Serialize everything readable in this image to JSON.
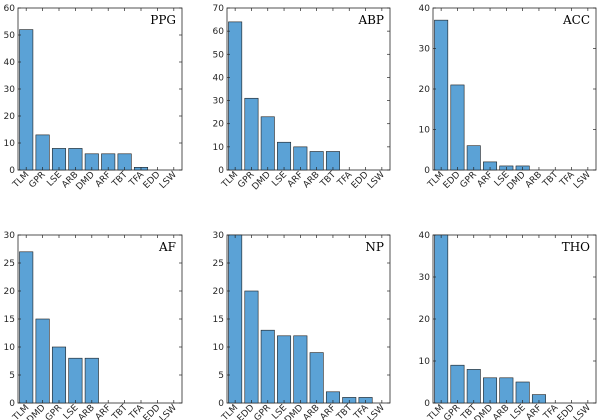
{
  "colors": {
    "bar": "#5ba2d6",
    "bar_edge": "#1f1f1f",
    "axis": "#262626"
  },
  "chart_data": [
    {
      "type": "bar",
      "title": "PPG",
      "categories": [
        "TLM",
        "GPR",
        "LSE",
        "ARB",
        "DMD",
        "ARF",
        "TBT",
        "TFA",
        "EDD",
        "LSW"
      ],
      "values": [
        52,
        13,
        8,
        8,
        6,
        6,
        6,
        1,
        0,
        0
      ],
      "ylim": [
        0,
        60
      ],
      "yticks": [
        0,
        10,
        20,
        30,
        40,
        50,
        60
      ],
      "grid": false,
      "legend": "none"
    },
    {
      "type": "bar",
      "title": "ABP",
      "categories": [
        "TLM",
        "GPR",
        "DMD",
        "LSE",
        "ARF",
        "ARB",
        "TBT",
        "TFA",
        "EDD",
        "LSW"
      ],
      "values": [
        64,
        31,
        23,
        12,
        10,
        8,
        8,
        0,
        0,
        0
      ],
      "ylim": [
        0,
        70
      ],
      "yticks": [
        0,
        10,
        20,
        30,
        40,
        50,
        60,
        70
      ],
      "grid": false,
      "legend": "none"
    },
    {
      "type": "bar",
      "title": "ACC",
      "categories": [
        "TLM",
        "EDD",
        "GPR",
        "ARF",
        "LSE",
        "DMD",
        "ARB",
        "TBT",
        "TFA",
        "LSW"
      ],
      "values": [
        37,
        21,
        6,
        2,
        1,
        1,
        0,
        0,
        0,
        0
      ],
      "ylim": [
        0,
        40
      ],
      "yticks": [
        0,
        10,
        20,
        30,
        40
      ],
      "grid": false,
      "legend": "none"
    },
    {
      "type": "bar",
      "title": "AF",
      "categories": [
        "TLM",
        "DMD",
        "GPR",
        "LSE",
        "ARB",
        "ARF",
        "TBT",
        "TFA",
        "EDD",
        "LSW"
      ],
      "values": [
        27,
        15,
        10,
        8,
        8,
        0,
        0,
        0,
        0,
        0
      ],
      "ylim": [
        0,
        30
      ],
      "yticks": [
        0,
        5,
        10,
        15,
        20,
        25,
        30
      ],
      "grid": false,
      "legend": "none"
    },
    {
      "type": "bar",
      "title": "NP",
      "categories": [
        "TLM",
        "EDD",
        "GPR",
        "LSE",
        "DMD",
        "ARB",
        "ARF",
        "TBT",
        "TFA",
        "LSW"
      ],
      "values": [
        30,
        20,
        13,
        12,
        12,
        9,
        2,
        1,
        1,
        0
      ],
      "ylim": [
        0,
        30
      ],
      "yticks": [
        0,
        5,
        10,
        15,
        20,
        25,
        30
      ],
      "grid": false,
      "legend": "none"
    },
    {
      "type": "bar",
      "title": "THO",
      "categories": [
        "TLM",
        "GPR",
        "TBT",
        "DMD",
        "ARB",
        "LSE",
        "ARF",
        "TFA",
        "EDD",
        "LSW"
      ],
      "values": [
        40,
        9,
        8,
        6,
        6,
        5,
        2,
        0,
        0,
        0
      ],
      "ylim": [
        0,
        40
      ],
      "yticks": [
        0,
        10,
        20,
        30,
        40
      ],
      "grid": false,
      "legend": "none"
    }
  ]
}
